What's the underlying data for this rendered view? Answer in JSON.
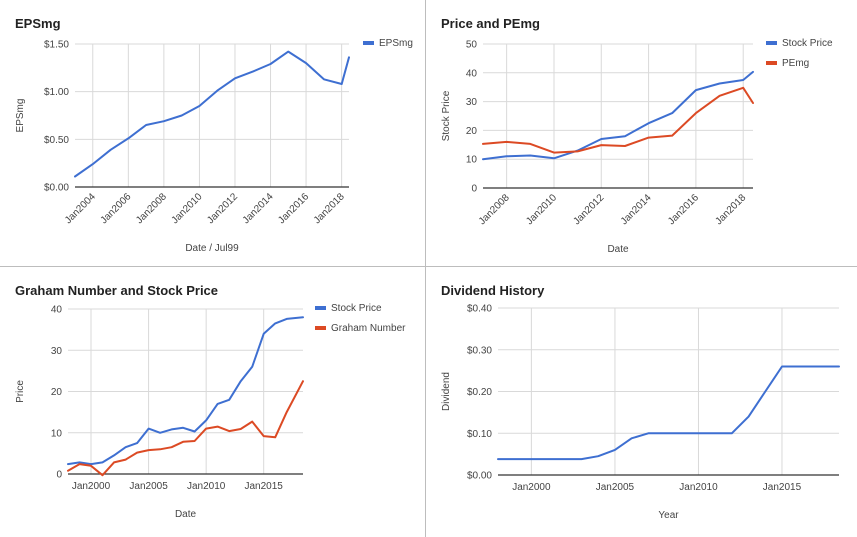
{
  "colors": {
    "blue": "#3e6fd1",
    "red": "#dc4a24",
    "grid": "#d9d9d9",
    "axis": "#333333",
    "tick": "#444444"
  },
  "chart_data": [
    {
      "type": "line",
      "title": "EPSmg",
      "xlabel": "Date / Jul99",
      "ylabel": "EPSmg",
      "x_type": "date",
      "xticks": [
        "Jan2004",
        "Jan2006",
        "Jan2008",
        "Jan2010",
        "Jan2012",
        "Jan2014",
        "Jan2016",
        "Jan2018"
      ],
      "yticks": [
        "$0.00",
        "$0.50",
        "$1.00",
        "$1.50"
      ],
      "xlim": [
        "2003-01-01",
        "2018-06-01"
      ],
      "ylim": [
        0,
        1.5
      ],
      "grid": true,
      "legend": "right",
      "series": [
        {
          "name": "EPSmg",
          "color": "blue",
          "points": [
            [
              "2003-01-01",
              0.11
            ],
            [
              "2004-01-01",
              0.24
            ],
            [
              "2005-01-01",
              0.39
            ],
            [
              "2006-01-01",
              0.51
            ],
            [
              "2007-01-01",
              0.65
            ],
            [
              "2008-01-01",
              0.69
            ],
            [
              "2009-01-01",
              0.75
            ],
            [
              "2010-01-01",
              0.85
            ],
            [
              "2011-01-01",
              1.01
            ],
            [
              "2012-01-01",
              1.14
            ],
            [
              "2013-01-01",
              1.21
            ],
            [
              "2014-01-01",
              1.29
            ],
            [
              "2015-01-01",
              1.42
            ],
            [
              "2016-01-01",
              1.3
            ],
            [
              "2017-01-01",
              1.13
            ],
            [
              "2018-01-01",
              1.08
            ],
            [
              "2018-06-01",
              1.36
            ]
          ]
        }
      ]
    },
    {
      "type": "line",
      "title": "Price and PEmg",
      "xlabel": "Date",
      "ylabel": "Stock Price",
      "x_type": "date",
      "xticks": [
        "Jan2008",
        "Jan2010",
        "Jan2012",
        "Jan2014",
        "Jan2016",
        "Jan2018"
      ],
      "yticks": [
        "0",
        "10",
        "20",
        "30",
        "40",
        "50"
      ],
      "xlim": [
        "2007-01-01",
        "2018-06-01"
      ],
      "ylim": [
        0,
        50
      ],
      "grid": true,
      "legend": "right",
      "series": [
        {
          "name": "Stock Price",
          "color": "blue",
          "points": [
            [
              "2007-01-01",
              10.0
            ],
            [
              "2008-01-01",
              11.0
            ],
            [
              "2009-01-01",
              11.3
            ],
            [
              "2010-01-01",
              10.3
            ],
            [
              "2011-01-01",
              13.0
            ],
            [
              "2012-01-01",
              17.0
            ],
            [
              "2013-01-01",
              18.0
            ],
            [
              "2014-01-01",
              22.5
            ],
            [
              "2015-01-01",
              26.0
            ],
            [
              "2016-01-01",
              34.0
            ],
            [
              "2017-01-01",
              36.3
            ],
            [
              "2018-01-01",
              37.5
            ],
            [
              "2018-06-01",
              40.3
            ]
          ]
        },
        {
          "name": "PEmg",
          "color": "red",
          "points": [
            [
              "2007-01-01",
              15.3
            ],
            [
              "2008-01-01",
              16.0
            ],
            [
              "2009-01-01",
              15.3
            ],
            [
              "2010-01-01",
              12.3
            ],
            [
              "2011-01-01",
              12.7
            ],
            [
              "2012-01-01",
              14.9
            ],
            [
              "2013-01-01",
              14.6
            ],
            [
              "2014-01-01",
              17.5
            ],
            [
              "2015-01-01",
              18.2
            ],
            [
              "2016-01-01",
              26.0
            ],
            [
              "2017-01-01",
              32.0
            ],
            [
              "2018-01-01",
              34.8
            ],
            [
              "2018-06-01",
              29.5
            ]
          ]
        }
      ]
    },
    {
      "type": "line",
      "title": "Graham Number and Stock Price",
      "xlabel": "Date",
      "ylabel": "Price",
      "x_type": "date",
      "xticks": [
        "Jan2000",
        "Jan2005",
        "Jan2010",
        "Jan2015"
      ],
      "yticks": [
        "0",
        "10",
        "20",
        "30",
        "40"
      ],
      "xlim": [
        "1998-01-01",
        "2018-06-01"
      ],
      "ylim": [
        0,
        40
      ],
      "grid": true,
      "legend": "right",
      "series": [
        {
          "name": "Stock Price",
          "color": "blue",
          "points": [
            [
              "1998-01-01",
              2.4
            ],
            [
              "1999-01-01",
              2.8
            ],
            [
              "2000-01-01",
              2.4
            ],
            [
              "2001-01-01",
              2.8
            ],
            [
              "2002-01-01",
              4.5
            ],
            [
              "2003-01-01",
              6.5
            ],
            [
              "2004-01-01",
              7.5
            ],
            [
              "2005-01-01",
              11.0
            ],
            [
              "2006-01-01",
              10.0
            ],
            [
              "2007-01-01",
              10.8
            ],
            [
              "2008-01-01",
              11.2
            ],
            [
              "2009-01-01",
              10.3
            ],
            [
              "2010-01-01",
              13.0
            ],
            [
              "2011-01-01",
              17.0
            ],
            [
              "2012-01-01",
              18.0
            ],
            [
              "2013-01-01",
              22.5
            ],
            [
              "2014-01-01",
              26.0
            ],
            [
              "2015-01-01",
              34.0
            ],
            [
              "2016-01-01",
              36.5
            ],
            [
              "2017-01-01",
              37.6
            ],
            [
              "2018-06-01",
              38.0
            ]
          ]
        },
        {
          "name": "Graham Number",
          "color": "red",
          "points": [
            [
              "1998-01-01",
              0.8
            ],
            [
              "1999-01-01",
              2.4
            ],
            [
              "2000-01-01",
              2.0
            ],
            [
              "2001-01-01",
              -0.3
            ],
            [
              "2002-01-01",
              2.8
            ],
            [
              "2003-01-01",
              3.5
            ],
            [
              "2004-01-01",
              5.2
            ],
            [
              "2005-01-01",
              5.8
            ],
            [
              "2006-01-01",
              6.0
            ],
            [
              "2007-01-01",
              6.5
            ],
            [
              "2008-01-01",
              7.8
            ],
            [
              "2009-01-01",
              8.0
            ],
            [
              "2010-01-01",
              11.0
            ],
            [
              "2011-01-01",
              11.5
            ],
            [
              "2012-01-01",
              10.4
            ],
            [
              "2013-01-01",
              10.9
            ],
            [
              "2014-01-01",
              12.7
            ],
            [
              "2015-01-01",
              9.2
            ],
            [
              "2016-01-01",
              8.9
            ],
            [
              "2017-01-01",
              15.0
            ],
            [
              "2018-06-01",
              22.5
            ]
          ]
        }
      ]
    },
    {
      "type": "line",
      "title": "Dividend History",
      "xlabel": "Year",
      "ylabel": "Dividend",
      "x_type": "date",
      "xticks": [
        "Jan2000",
        "Jan2005",
        "Jan2010",
        "Jan2015"
      ],
      "yticks": [
        "$0.00",
        "$0.10",
        "$0.20",
        "$0.30",
        "$0.40"
      ],
      "xlim": [
        "1998-01-01",
        "2018-06-01"
      ],
      "ylim": [
        0,
        0.4
      ],
      "grid": true,
      "legend": "none",
      "series": [
        {
          "name": "",
          "color": "blue",
          "points": [
            [
              "1998-01-01",
              0.038
            ],
            [
              "1999-01-01",
              0.038
            ],
            [
              "2000-01-01",
              0.038
            ],
            [
              "2001-01-01",
              0.038
            ],
            [
              "2002-01-01",
              0.038
            ],
            [
              "2003-01-01",
              0.038
            ],
            [
              "2004-01-01",
              0.045
            ],
            [
              "2005-01-01",
              0.06
            ],
            [
              "2006-01-01",
              0.088
            ],
            [
              "2007-01-01",
              0.1
            ],
            [
              "2008-01-01",
              0.1
            ],
            [
              "2009-01-01",
              0.1
            ],
            [
              "2010-01-01",
              0.1
            ],
            [
              "2011-01-01",
              0.1
            ],
            [
              "2012-01-01",
              0.1
            ],
            [
              "2013-01-01",
              0.14
            ],
            [
              "2014-01-01",
              0.2
            ],
            [
              "2015-01-01",
              0.26
            ],
            [
              "2016-01-01",
              0.26
            ],
            [
              "2017-01-01",
              0.26
            ],
            [
              "2018-06-01",
              0.26
            ]
          ]
        }
      ]
    }
  ]
}
